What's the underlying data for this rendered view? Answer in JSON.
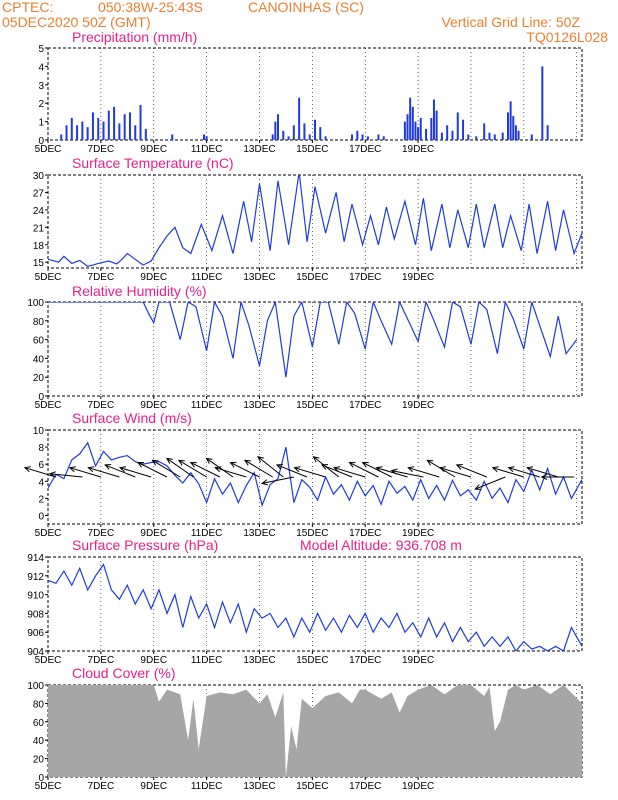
{
  "header": {
    "source": "CPTEC:",
    "coords": "050:38W-25:43S",
    "location": "CANOINHAS (SC)",
    "datetime": "05DEC2020 50Z (GMT)",
    "grid_note": "Vertical Grid Line: 50Z",
    "code": "TQ0126L028"
  },
  "colors": {
    "header": "#ee7f2c",
    "title": "#e8208a",
    "line": "#1f3be0",
    "bars": "#1f3be0",
    "cloud": "#a6a6a6",
    "arrow": "#000000"
  },
  "x_ticks": [
    "5DEC",
    "7DEC",
    "9DEC",
    "11DEC",
    "13DEC",
    "15DEC",
    "17DEC",
    "19DEC"
  ],
  "chart_data": [
    {
      "type": "bar",
      "title": "Precipitation (mm/h)",
      "ylim": [
        0,
        5
      ],
      "yticks": [
        0,
        1,
        2,
        3,
        4,
        5
      ],
      "x_days": [
        0.5,
        0.7,
        0.9,
        1.1,
        1.3,
        1.5,
        1.7,
        1.9,
        2.1,
        2.3,
        2.5,
        2.7,
        2.9,
        3.1,
        3.3,
        3.5,
        3.7,
        4.7,
        5.9,
        6.0,
        8.5,
        8.6,
        8.7,
        8.9,
        9.1,
        9.3,
        9.5,
        9.7,
        9.9,
        10.1,
        10.3,
        10.5,
        11.5,
        11.7,
        11.9,
        12.1,
        12.5,
        12.7,
        13.5,
        13.6,
        13.7,
        13.8,
        13.9,
        14.0,
        14.1,
        14.3,
        14.5,
        14.6,
        14.7,
        14.9,
        15.1,
        15.3,
        15.5,
        15.7,
        15.9,
        16.2,
        16.5,
        16.7,
        16.9,
        17.2,
        17.4,
        17.5,
        17.6,
        17.7,
        17.8,
        18.3,
        18.7,
        18.9
      ],
      "values": [
        0.3,
        0.8,
        1.2,
        0.8,
        1.0,
        0.7,
        1.5,
        1.2,
        1.0,
        1.6,
        1.8,
        0.9,
        1.4,
        1.5,
        0.8,
        1.9,
        0.6,
        0.3,
        0.3,
        0.2,
        0.3,
        1.0,
        1.4,
        0.5,
        0.2,
        0.8,
        2.3,
        0.9,
        0.3,
        1.1,
        0.7,
        0.2,
        0.3,
        0.5,
        0.3,
        0.2,
        0.3,
        0.2,
        1.0,
        1.4,
        2.3,
        1.8,
        1.0,
        0.7,
        1.2,
        0.6,
        1.2,
        2.2,
        1.6,
        0.4,
        0.8,
        0.5,
        1.5,
        1.1,
        0.3,
        0.2,
        0.9,
        0.4,
        0.3,
        0.4,
        1.5,
        2.1,
        1.3,
        0.8,
        0.5,
        0.3,
        4.0,
        0.8
      ]
    },
    {
      "type": "line",
      "title": "Surface Temperature (nC)",
      "ylim": [
        14,
        30
      ],
      "yticks": [
        15,
        18,
        21,
        24,
        27,
        30
      ],
      "x_days": [
        0,
        0.4,
        0.6,
        0.9,
        1.2,
        1.5,
        1.7,
        1.9,
        2.3,
        2.6,
        2.8,
        3.0,
        3.3,
        3.6,
        3.9,
        4.2,
        4.5,
        4.8,
        5.1,
        5.4,
        5.8,
        6.2,
        6.6,
        7.0,
        7.4,
        7.7,
        8.0,
        8.4,
        8.7,
        9.1,
        9.5,
        9.8,
        10.1,
        10.5,
        10.9,
        11.2,
        11.5,
        11.9,
        12.2,
        12.5,
        12.8,
        13.1,
        13.5,
        13.9,
        14.2,
        14.5,
        14.9,
        15.2,
        15.5,
        15.9,
        16.2,
        16.5,
        16.9,
        17.2,
        17.5,
        17.9,
        18.2,
        18.5,
        18.9,
        19.2,
        19.5,
        19.9,
        20.2
      ],
      "values": [
        15.5,
        15.0,
        16.0,
        14.8,
        15.3,
        14.3,
        14.5,
        14.8,
        15.2,
        14.7,
        15.5,
        16.5,
        15.5,
        14.5,
        15.2,
        17.5,
        19.5,
        21.0,
        17.5,
        16.5,
        21.5,
        17.0,
        23.0,
        16.5,
        25.5,
        18.5,
        28.5,
        17.0,
        29.0,
        18.0,
        30.5,
        18.5,
        28.0,
        20.0,
        27.0,
        18.5,
        25.0,
        18.0,
        23.0,
        18.0,
        24.5,
        19.0,
        25.5,
        18.0,
        26.0,
        17.0,
        25.0,
        17.5,
        24.0,
        17.5,
        25.0,
        17.5,
        25.0,
        17.5,
        23.0,
        17.0,
        25.0,
        16.5,
        25.5,
        17.0,
        24.0,
        16.5,
        20.0
      ]
    },
    {
      "type": "line",
      "title": "Relative Humidity (%)",
      "ylim": [
        0,
        100
      ],
      "yticks": [
        0,
        20,
        40,
        60,
        80,
        100
      ],
      "x_days": [
        0,
        3.6,
        3.8,
        4.0,
        4.2,
        4.6,
        5.0,
        5.3,
        5.6,
        6.0,
        6.3,
        6.6,
        7.0,
        7.3,
        7.6,
        8.0,
        8.3,
        8.6,
        9.0,
        9.3,
        9.6,
        10.0,
        10.3,
        10.6,
        11.0,
        11.3,
        11.6,
        12.0,
        12.3,
        12.6,
        13.0,
        13.3,
        13.6,
        14.0,
        14.3,
        14.6,
        15.0,
        15.3,
        15.6,
        16.0,
        16.3,
        16.6,
        17.0,
        17.3,
        17.6,
        18.0,
        18.3,
        18.6,
        19.0,
        19.3,
        19.6,
        20.0
      ],
      "values": [
        100,
        100,
        88,
        78,
        100,
        100,
        60,
        100,
        95,
        48,
        100,
        85,
        40,
        100,
        75,
        32,
        80,
        100,
        20,
        85,
        100,
        52,
        100,
        100,
        55,
        100,
        88,
        50,
        100,
        80,
        55,
        100,
        82,
        58,
        100,
        80,
        52,
        100,
        95,
        55,
        100,
        92,
        45,
        100,
        82,
        50,
        100,
        75,
        42,
        85,
        45,
        60
      ]
    },
    {
      "type": "line",
      "title": "Surface Wind (m/s)",
      "ylim": [
        -1,
        10
      ],
      "yticks": [
        0,
        2,
        4,
        6,
        8,
        10
      ],
      "x_days": [
        0,
        0.3,
        0.6,
        0.9,
        1.2,
        1.5,
        1.8,
        2.1,
        2.4,
        2.7,
        3.0,
        3.3,
        3.6,
        3.9,
        4.2,
        4.5,
        4.8,
        5.1,
        5.4,
        5.7,
        6.0,
        6.3,
        6.6,
        6.9,
        7.2,
        7.5,
        7.8,
        8.1,
        8.4,
        8.7,
        9.0,
        9.3,
        9.6,
        9.9,
        10.2,
        10.5,
        10.8,
        11.1,
        11.4,
        11.7,
        12.0,
        12.3,
        12.6,
        12.9,
        13.2,
        13.5,
        13.8,
        14.1,
        14.4,
        14.7,
        15.0,
        15.3,
        15.6,
        15.9,
        16.2,
        16.5,
        16.8,
        17.1,
        17.4,
        17.7,
        18.0,
        18.3,
        18.6,
        18.9,
        19.2,
        19.5,
        19.8,
        20.2
      ],
      "values": [
        3.2,
        4.8,
        4.3,
        6.5,
        7.2,
        8.5,
        5.8,
        7.5,
        6.5,
        6.8,
        7.0,
        6.3,
        6.0,
        6.2,
        6.3,
        5.8,
        4.7,
        3.8,
        5.0,
        3.7,
        1.5,
        4.3,
        2.5,
        3.8,
        1.5,
        3.5,
        5.0,
        1.2,
        3.6,
        4.3,
        8.0,
        1.5,
        4.2,
        3.3,
        1.8,
        4.5,
        2.5,
        3.6,
        1.8,
        4.0,
        2.3,
        3.5,
        1.3,
        4.0,
        2.6,
        3.4,
        1.8,
        4.2,
        2.0,
        3.5,
        1.8,
        4.1,
        2.3,
        3.0,
        1.8,
        4.0,
        2.0,
        3.2,
        1.5,
        4.2,
        2.8,
        5.3,
        3.0,
        5.5,
        2.5,
        4.5,
        2.0,
        4.2
      ],
      "arrows": {
        "x_days": [
          0.3,
          1.3,
          2.0,
          2.7,
          3.3,
          3.9,
          4.5,
          5.0,
          5.5,
          6.0,
          6.5,
          7.0,
          7.5,
          8.0,
          8.5,
          8.9,
          9.3,
          9.8,
          10.5,
          11.0,
          11.5,
          12.0,
          12.5,
          13.0,
          13.6,
          14.2,
          14.8,
          15.4,
          16.0,
          16.6,
          17.3,
          18.0,
          18.6,
          19.3,
          19.9
        ],
        "u": [
          1,
          1,
          1,
          1,
          1,
          1,
          1,
          1,
          1,
          1,
          1,
          1,
          1,
          1,
          1,
          1,
          1,
          1,
          1,
          1,
          1,
          1,
          1,
          1,
          1,
          1,
          1,
          1,
          1,
          1,
          1,
          1,
          1,
          1,
          1
        ],
        "v": [
          -0.3,
          -0.1,
          -0.3,
          -0.3,
          -0.4,
          -0.3,
          -0.5,
          -0.6,
          -0.7,
          -0.6,
          -0.5,
          -0.7,
          -0.3,
          -0.5,
          -0.6,
          -0.8,
          0.2,
          -0.4,
          -0.3,
          -0.8,
          -0.4,
          -0.3,
          -0.5,
          -0.5,
          -0.3,
          -0.2,
          -0.3,
          -0.6,
          -0.3,
          -0.4,
          0.4,
          -0.3,
          -0.3,
          -0.3,
          0.0
        ]
      }
    },
    {
      "type": "line",
      "title": "Surface Pressure (hPa)",
      "note": "Model Altitude: 936.708 m",
      "ylim": [
        904,
        914
      ],
      "yticks": [
        904,
        906,
        908,
        910,
        912,
        914
      ],
      "x_days": [
        0,
        0.3,
        0.6,
        0.9,
        1.2,
        1.5,
        1.8,
        2.1,
        2.4,
        2.7,
        3.0,
        3.3,
        3.6,
        3.9,
        4.2,
        4.5,
        4.8,
        5.1,
        5.4,
        5.7,
        6.0,
        6.3,
        6.6,
        6.9,
        7.2,
        7.5,
        7.8,
        8.1,
        8.4,
        8.7,
        9.0,
        9.3,
        9.6,
        9.9,
        10.2,
        10.5,
        10.8,
        11.1,
        11.4,
        11.7,
        12.0,
        12.3,
        12.6,
        12.9,
        13.2,
        13.5,
        13.8,
        14.1,
        14.4,
        14.7,
        15.0,
        15.3,
        15.6,
        15.9,
        16.2,
        16.5,
        16.8,
        17.1,
        17.4,
        17.7,
        18.0,
        18.3,
        18.6,
        18.9,
        19.2,
        19.5,
        19.8,
        20.2
      ],
      "values": [
        911.5,
        911.2,
        912.5,
        911.0,
        912.8,
        910.5,
        912.0,
        913.2,
        910.5,
        909.5,
        911.0,
        909.0,
        910.5,
        908.5,
        910.5,
        908.0,
        910.0,
        906.5,
        909.8,
        907.5,
        909.0,
        906.5,
        909.2,
        907.0,
        909.0,
        906.0,
        908.5,
        907.5,
        908.0,
        906.5,
        907.5,
        905.5,
        907.5,
        906.0,
        908.0,
        906.2,
        907.5,
        906.0,
        907.8,
        906.5,
        908.0,
        906.0,
        907.5,
        906.5,
        908.0,
        906.0,
        907.0,
        905.5,
        907.5,
        905.5,
        907.0,
        905.0,
        906.5,
        905.0,
        906.0,
        904.5,
        905.5,
        904.5,
        905.5,
        904.0,
        905.0,
        904.2,
        904.5,
        904.0,
        904.5,
        904.0,
        906.5,
        904.5
      ]
    },
    {
      "type": "area",
      "title": "Cloud Cover (%)",
      "ylim": [
        0,
        100
      ],
      "yticks": [
        0,
        20,
        40,
        60,
        80,
        100
      ],
      "x_days": [
        0,
        1.0,
        2.0,
        3.0,
        4.0,
        4.2,
        4.5,
        5.0,
        5.3,
        5.5,
        5.7,
        6.0,
        6.5,
        7.0,
        7.5,
        8.0,
        8.3,
        8.6,
        8.9,
        9.0,
        9.2,
        9.4,
        9.6,
        10.0,
        10.5,
        11.0,
        11.5,
        11.8,
        12.0,
        12.3,
        12.6,
        13.0,
        13.3,
        13.6,
        14.0,
        14.5,
        15.0,
        15.5,
        16.0,
        16.5,
        16.7,
        16.9,
        17.1,
        17.4,
        17.7,
        18.0,
        18.5,
        19.0,
        19.5,
        20.2
      ],
      "values": [
        100,
        100,
        100,
        100,
        100,
        82,
        95,
        90,
        40,
        85,
        30,
        88,
        92,
        90,
        95,
        80,
        90,
        65,
        92,
        0,
        55,
        30,
        85,
        75,
        88,
        92,
        80,
        95,
        95,
        90,
        85,
        92,
        70,
        88,
        95,
        100,
        90,
        100,
        100,
        88,
        98,
        50,
        60,
        95,
        100,
        95,
        100,
        90,
        100,
        80
      ]
    }
  ]
}
